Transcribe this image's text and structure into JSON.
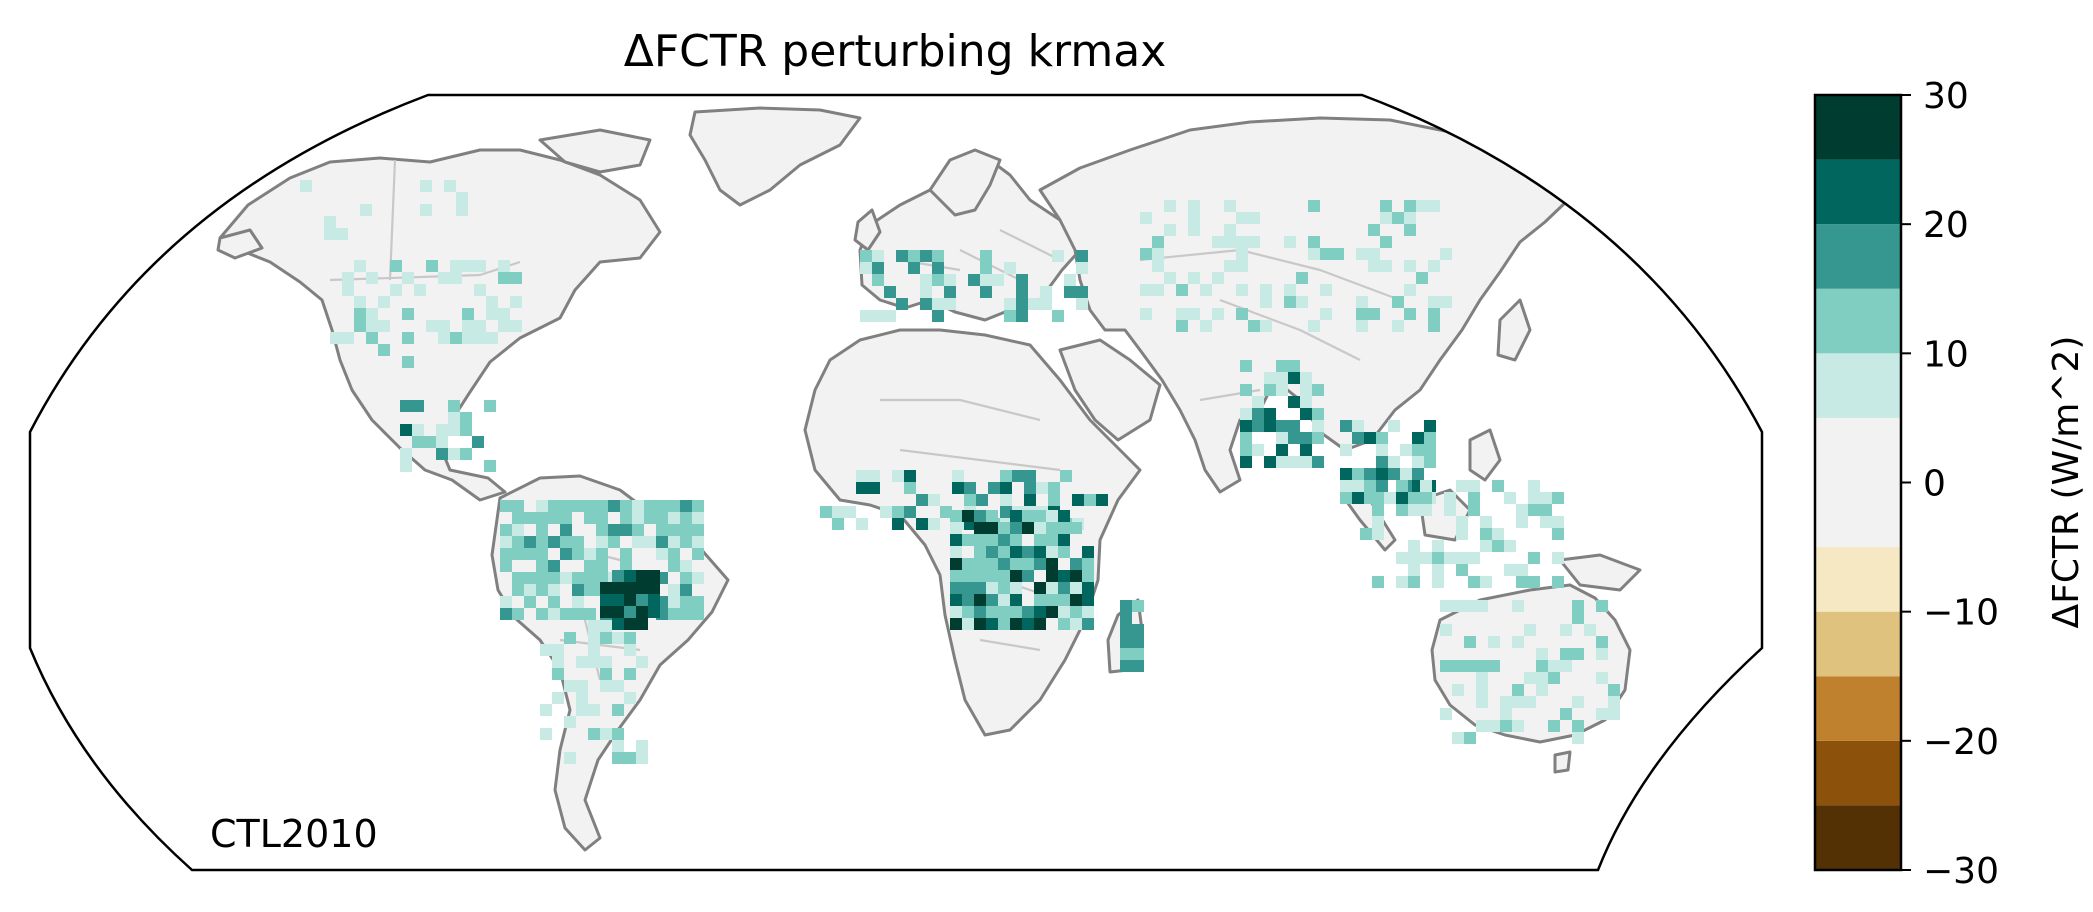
{
  "title": "ΔFCTR perturbing krmax",
  "run_label": "CTL2010",
  "colorbar": {
    "label": "ΔFCTR (W/m^2)",
    "ticks": [
      "30",
      "20",
      "10",
      "0",
      "−10",
      "−20",
      "−30"
    ],
    "range": [
      -30,
      30
    ],
    "levels": [
      {
        "min": -30,
        "max": -25,
        "color": "#543005"
      },
      {
        "min": -25,
        "max": -20,
        "color": "#8c510a"
      },
      {
        "min": -20,
        "max": -15,
        "color": "#bf812d"
      },
      {
        "min": -15,
        "max": -10,
        "color": "#dfc27d"
      },
      {
        "min": -10,
        "max": -5,
        "color": "#f6e8c3"
      },
      {
        "min": -5,
        "max": 5,
        "color": "#f2f2f2"
      },
      {
        "min": 5,
        "max": 10,
        "color": "#c7eae5"
      },
      {
        "min": 10,
        "max": 15,
        "color": "#80cdc1"
      },
      {
        "min": 15,
        "max": 20,
        "color": "#35978f"
      },
      {
        "min": 20,
        "max": 25,
        "color": "#01665e"
      },
      {
        "min": 25,
        "max": 30,
        "color": "#003c30"
      }
    ]
  },
  "map": {
    "projection": "Robinson",
    "ocean_color": "#ffffff",
    "land_color": "#f2f2f2",
    "coastline_color": "#808080",
    "border_color": "#c8c8c8",
    "highlights": [
      {
        "region": "Amazon basin",
        "level": "10 to 15",
        "color": "#80cdc1"
      },
      {
        "region": "Southern Amazon",
        "level": "25 to 30",
        "color": "#003c30"
      },
      {
        "region": "Congo basin",
        "level": "10 to 15",
        "color": "#80cdc1"
      },
      {
        "region": "Southern Congo",
        "level": "25 to 30",
        "color": "#003c30"
      },
      {
        "region": "India / Bangladesh",
        "level": "15 to 20",
        "color": "#35978f"
      },
      {
        "region": "Indochina",
        "level": "15 to 20",
        "color": "#35978f"
      },
      {
        "region": "Eastern Madagascar",
        "level": "10 to 15",
        "color": "#80cdc1"
      },
      {
        "region": "Eastern United States",
        "level": "5 to 10",
        "color": "#c7eae5"
      },
      {
        "region": "Maritime Southeast Asia",
        "level": "5 to 10",
        "color": "#c7eae5"
      }
    ]
  }
}
